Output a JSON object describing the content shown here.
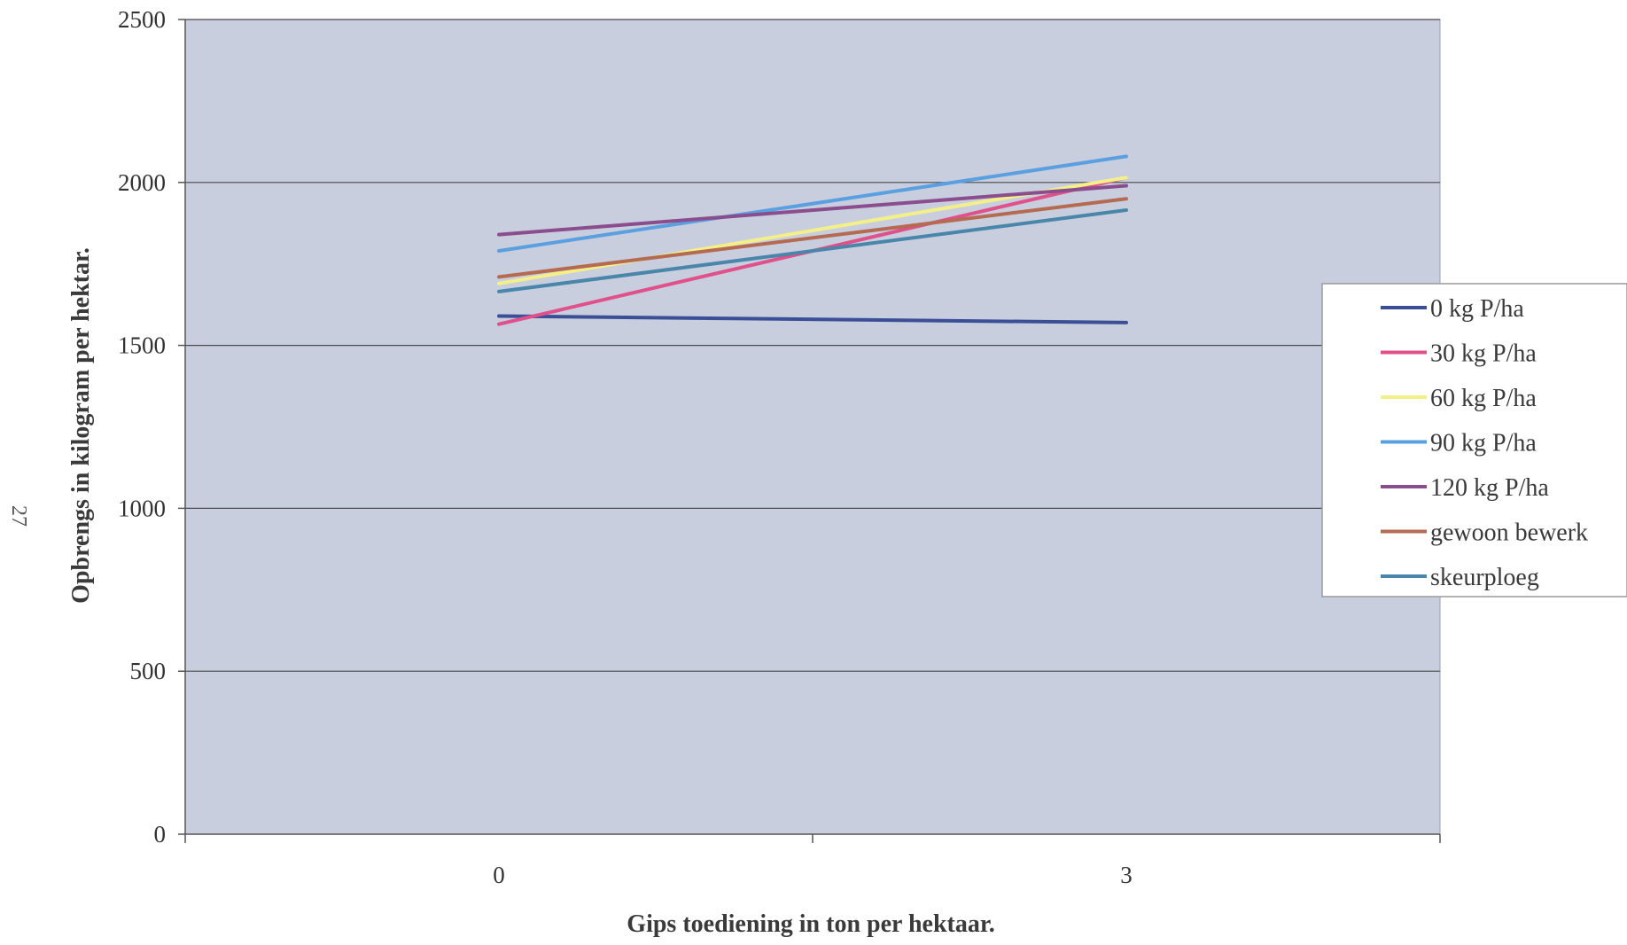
{
  "page_number": "27",
  "chart_data": {
    "type": "line",
    "title": "",
    "xlabel": "Gips toediening in ton per hektaar.",
    "ylabel": "Opbrengs in kilogram per hektar.",
    "categories": [
      "0",
      "3"
    ],
    "ylim": [
      0,
      2500
    ],
    "yticks": [
      "0",
      "500",
      "1000",
      "1500",
      "2000",
      "2500"
    ],
    "grid": true,
    "legend_position": "right",
    "plot_background": "#c8cede",
    "series": [
      {
        "name": "0 kg P/ha",
        "values": [
          1590,
          1570
        ],
        "color": "#3b4f96"
      },
      {
        "name": "30 kg P/ha",
        "values": [
          1565,
          2015
        ],
        "color": "#e0508a"
      },
      {
        "name": "60 kg P/ha",
        "values": [
          1690,
          2015
        ],
        "color": "#f3f08a"
      },
      {
        "name": "90 kg P/ha",
        "values": [
          1790,
          2080
        ],
        "color": "#5aa0e0"
      },
      {
        "name": "120 kg P/ha",
        "values": [
          1840,
          1990
        ],
        "color": "#8a4e8e"
      },
      {
        "name": "gewoon bewerk",
        "values": [
          1710,
          1950
        ],
        "color": "#b56a52"
      },
      {
        "name": "skeurploeg",
        "values": [
          1665,
          1915
        ],
        "color": "#4a86aa"
      }
    ]
  }
}
